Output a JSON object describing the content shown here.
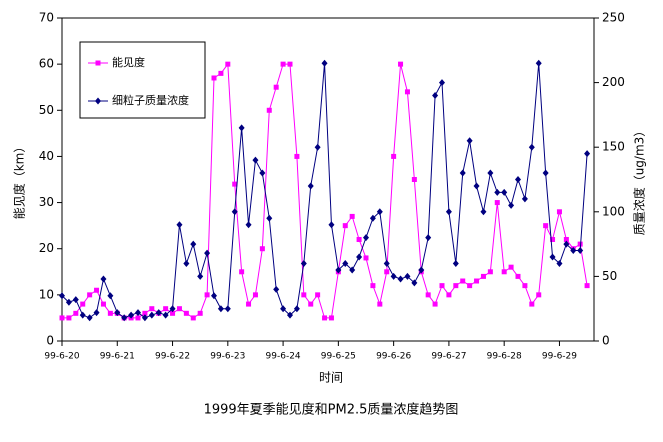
{
  "chart_data": {
    "type": "line",
    "title": "1999年夏季能见度和PM2.5质量浓度趋势图",
    "xlabel": "时间",
    "ylabel": "能见度（km）",
    "y2label": "质量浓度（ug/m3）",
    "categories": [
      "99-6-20",
      null,
      null,
      null,
      null,
      null,
      null,
      null,
      "99-6-21",
      null,
      null,
      null,
      null,
      null,
      null,
      null,
      "99-6-22",
      null,
      null,
      null,
      null,
      null,
      null,
      null,
      "99-6-23",
      null,
      null,
      null,
      null,
      null,
      null,
      null,
      "99-6-24",
      null,
      null,
      null,
      null,
      null,
      null,
      null,
      "99-6-25",
      null,
      null,
      null,
      null,
      null,
      null,
      null,
      "99-6-26",
      null,
      null,
      null,
      null,
      null,
      null,
      null,
      "99-6-27",
      null,
      null,
      null,
      null,
      null,
      null,
      null,
      "99-6-28",
      null,
      null,
      null,
      null,
      null,
      null,
      null,
      "99-6-29",
      null,
      null,
      null,
      null
    ],
    "series": [
      {
        "name": "能见度",
        "color": "#ff00ff",
        "marker": "square",
        "values": [
          5,
          5,
          6,
          8,
          10,
          11,
          8,
          6,
          6,
          5,
          5,
          5,
          6,
          7,
          6,
          7,
          6,
          7,
          6,
          5,
          6,
          10,
          57,
          58,
          60,
          34,
          15,
          8,
          10,
          20,
          50,
          55,
          60,
          60,
          40,
          10,
          8,
          10,
          5,
          5,
          15,
          25,
          27,
          22,
          18,
          12,
          8,
          15,
          40,
          60,
          54,
          35,
          15,
          10,
          8,
          12,
          10,
          12,
          13,
          12,
          13,
          14,
          15,
          30,
          15,
          16,
          14,
          12,
          8,
          10,
          25,
          22,
          28,
          22,
          20,
          21,
          12
        ]
      },
      {
        "name": "细粒子质量浓度",
        "color": "#000080",
        "marker": "diamond",
        "axis": "y2",
        "values": [
          35,
          30,
          32,
          20,
          18,
          22,
          48,
          35,
          22,
          18,
          20,
          22,
          18,
          20,
          22,
          20,
          25,
          90,
          60,
          75,
          50,
          68,
          35,
          25,
          25,
          100,
          165,
          90,
          140,
          130,
          95,
          40,
          25,
          20,
          25,
          60,
          120,
          150,
          215,
          90,
          55,
          60,
          55,
          65,
          80,
          95,
          100,
          60,
          50,
          48,
          50,
          45,
          55,
          80,
          190,
          200,
          100,
          60,
          130,
          155,
          120,
          100,
          130,
          115,
          115,
          105,
          125,
          110,
          150,
          215,
          130,
          65,
          60,
          75,
          70,
          70,
          145
        ]
      }
    ],
    "ylim": [
      0,
      70
    ],
    "yticks": [
      0,
      10,
      20,
      30,
      40,
      50,
      60,
      70
    ],
    "y2lim": [
      0,
      250
    ],
    "y2ticks": [
      0,
      50,
      100,
      150,
      200,
      250
    ],
    "legend": "upper left"
  }
}
